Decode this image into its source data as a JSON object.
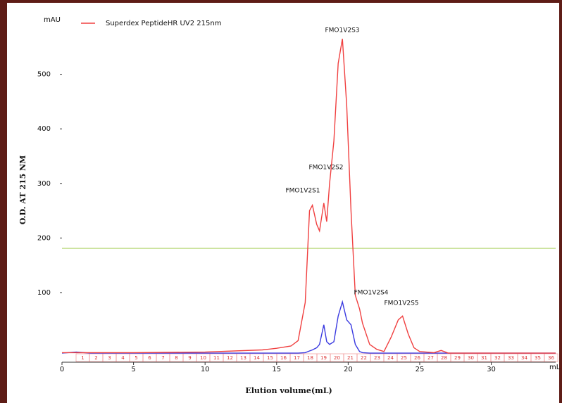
{
  "chart_data": {
    "type": "line",
    "y_unit": "mAU",
    "x_unit": "mL",
    "ylabel": "O.D. AT 215 NM",
    "xlabel": "Elution volume(mL)",
    "x": [
      0,
      1,
      2,
      5,
      10,
      14,
      15,
      16,
      16.5,
      17,
      17.3,
      17.5,
      17.8,
      18,
      18.3,
      18.5,
      18.7,
      19,
      19.3,
      19.6,
      19.9,
      20.2,
      20.5,
      20.8,
      21,
      21.5,
      22,
      22.5,
      23,
      23.5,
      23.8,
      24.2,
      24.6,
      25,
      26,
      26.5,
      27,
      30,
      34.5
    ],
    "series": [
      {
        "name": "Superdex PeptideHR UV2 215nm",
        "color": "#f04040",
        "values": [
          -10,
          -10,
          -10,
          -10,
          -9,
          -5,
          -2,
          2,
          12,
          82,
          250,
          260,
          225,
          213,
          264,
          230,
          300,
          378,
          520,
          565,
          443,
          250,
          95,
          70,
          44,
          5,
          -4,
          -8,
          18,
          50,
          57,
          24,
          -1,
          -8,
          -10,
          -6,
          -11,
          -11,
          -11
        ]
      },
      {
        "color": "#3a3ae0",
        "values": [
          -11,
          -9,
          -11,
          -11,
          -11,
          -11,
          -11,
          -11,
          -11,
          -10,
          -7,
          -5,
          -1,
          5,
          41,
          10,
          5,
          10,
          57,
          83,
          50,
          41,
          5,
          -8,
          -10,
          -11,
          -11,
          -11,
          -11,
          -11,
          -11,
          -11,
          -11,
          -11,
          -11,
          -11,
          -11,
          -11,
          -11
        ]
      }
    ],
    "threshold": {
      "value": 181,
      "color": "#b8d87a"
    },
    "annotations": [
      "FMO1V2S1",
      "FMO1V2S2",
      "FMO1V2S3",
      "FMO1V2S4",
      "FMO1V2S5"
    ],
    "fractions": [
      1,
      2,
      3,
      4,
      5,
      6,
      7,
      8,
      9,
      10,
      11,
      12,
      13,
      14,
      15,
      16,
      17,
      18,
      19,
      20,
      21,
      22,
      23,
      24,
      25,
      26,
      27,
      28,
      29,
      30,
      31,
      32,
      33,
      34,
      35,
      36
    ],
    "xlim": [
      0,
      34.5
    ],
    "ylim": [
      -25,
      600
    ],
    "xticks": [
      0,
      5,
      10,
      15,
      20,
      25,
      30
    ],
    "yticks": [
      100,
      200,
      300,
      400,
      500
    ]
  }
}
